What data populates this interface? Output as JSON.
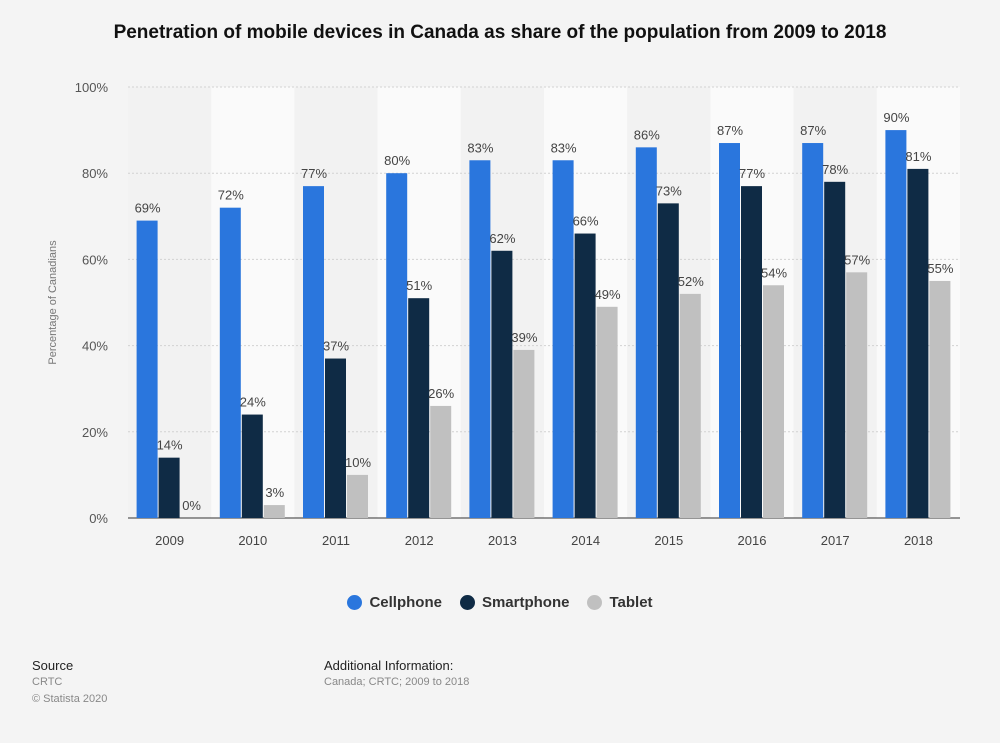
{
  "chart_data": {
    "type": "bar",
    "title": "Penetration of mobile devices in Canada as share of the population from 2009 to 2018",
    "ylabel": "Percentage of Canadians",
    "xlabel": "",
    "categories": [
      "2009",
      "2010",
      "2011",
      "2012",
      "2013",
      "2014",
      "2015",
      "2016",
      "2017",
      "2018"
    ],
    "series": [
      {
        "name": "Cellphone",
        "color": "#2a76dd",
        "values": [
          69,
          72,
          77,
          80,
          83,
          83,
          86,
          87,
          87,
          90
        ]
      },
      {
        "name": "Smartphone",
        "color": "#0f2b45",
        "values": [
          14,
          24,
          37,
          51,
          62,
          66,
          73,
          77,
          78,
          81
        ]
      },
      {
        "name": "Tablet",
        "color": "#c0c0c0",
        "values": [
          0,
          3,
          10,
          26,
          39,
          49,
          52,
          54,
          57,
          55
        ]
      }
    ],
    "ylim": [
      0,
      100
    ],
    "yticks": [
      0,
      20,
      40,
      60,
      80,
      100
    ],
    "value_suffix": "%",
    "grid": true,
    "legend_position": "bottom"
  },
  "footer": {
    "source_label": "Source",
    "source_value": "CRTC",
    "copyright": "© Statista 2020",
    "info_label": "Additional Information:",
    "info_value": "Canada; CRTC; 2009 to 2018"
  }
}
